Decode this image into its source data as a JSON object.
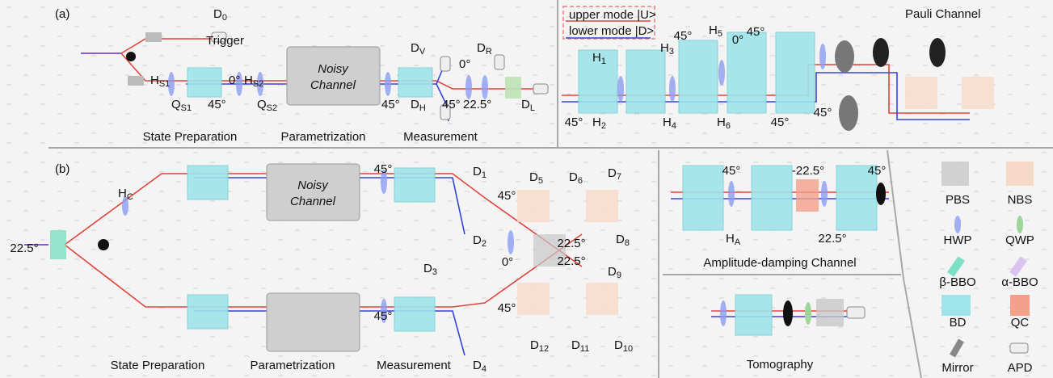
{
  "panel_a": {
    "label": "(a)",
    "trigger": "Trigger",
    "noisy_channel": [
      "Noisy",
      "Channel"
    ],
    "components": [
      {
        "b": "D",
        "s": "0"
      },
      {
        "b": "H",
        "s": "S1"
      },
      {
        "b": "Q",
        "s": "S1"
      },
      {
        "b": "H",
        "s": "S2"
      },
      {
        "b": "Q",
        "s": "S2"
      },
      {
        "b": "D",
        "s": "V"
      },
      {
        "b": "D",
        "s": "H"
      },
      {
        "b": "D",
        "s": "R"
      },
      {
        "b": "D",
        "s": "L"
      }
    ],
    "angles": [
      "45°",
      "0°",
      "45°",
      "45°",
      "0°",
      "22.5°"
    ],
    "stages": [
      "State Preparation",
      "Parametrization",
      "Measurement"
    ]
  },
  "pauli": {
    "title": "Pauli Channel",
    "modes": [
      "upper mode |U>",
      "lower mode |D>"
    ],
    "plates": [
      {
        "b": "H",
        "s": "1"
      },
      {
        "b": "H",
        "s": "2"
      },
      {
        "b": "H",
        "s": "3"
      },
      {
        "b": "H",
        "s": "4"
      },
      {
        "b": "H",
        "s": "5"
      },
      {
        "b": "H",
        "s": "6"
      }
    ],
    "angles": [
      "45°",
      "0°",
      "45°",
      "45°",
      "45°",
      "45°"
    ]
  },
  "panel_b": {
    "label": "(b)",
    "noisy_channel": [
      "Noisy",
      "Channel"
    ],
    "components": [
      {
        "b": "H",
        "s": "C"
      },
      {
        "b": "D",
        "s": "1"
      },
      {
        "b": "D",
        "s": "2"
      },
      {
        "b": "D",
        "s": "3"
      },
      {
        "b": "D",
        "s": "4"
      },
      {
        "b": "D",
        "s": "5"
      },
      {
        "b": "D",
        "s": "6"
      },
      {
        "b": "D",
        "s": "7"
      },
      {
        "b": "D",
        "s": "8"
      },
      {
        "b": "D",
        "s": "9"
      },
      {
        "b": "D",
        "s": "10"
      },
      {
        "b": "D",
        "s": "11"
      },
      {
        "b": "D",
        "s": "12"
      }
    ],
    "angles": [
      "22.5°",
      "45°",
      "45°",
      "22.5°",
      "22.5°",
      "0°",
      "45°",
      "45°"
    ],
    "stages": [
      "State Preparation",
      "Parametrization",
      "Measurement"
    ]
  },
  "amplitude": {
    "title": "Amplitude-damping Channel",
    "plate": {
      "b": "H",
      "s": "A"
    },
    "angles": [
      "45°",
      "-22.5°",
      "45°",
      "22.5°"
    ]
  },
  "tomography": {
    "title": "Tomography"
  },
  "legend": [
    "PBS",
    "NBS",
    "HWP",
    "QWP",
    "β-BBO",
    "α-BBO",
    "BD",
    "QC",
    "Mirror",
    "APD"
  ]
}
